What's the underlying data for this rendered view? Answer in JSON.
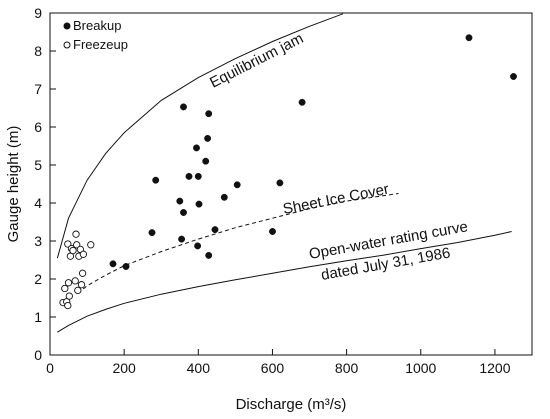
{
  "chart_data": {
    "type": "scatter",
    "xlabel": "Discharge (m³/s)",
    "ylabel": "Gauge height (m)",
    "xlim": [
      0,
      1300
    ],
    "ylim": [
      0,
      9
    ],
    "x_ticks": [
      0,
      200,
      400,
      600,
      800,
      1000,
      1200
    ],
    "y_ticks": [
      0,
      1,
      2,
      3,
      4,
      5,
      6,
      7,
      8,
      9
    ],
    "grid": false,
    "legend_position": "top-left",
    "series": [
      {
        "name": "Breakup",
        "marker": "filled-circle",
        "points": [
          {
            "x": 170,
            "y": 2.4
          },
          {
            "x": 205,
            "y": 2.33
          },
          {
            "x": 275,
            "y": 3.22
          },
          {
            "x": 285,
            "y": 4.6
          },
          {
            "x": 350,
            "y": 4.05
          },
          {
            "x": 355,
            "y": 3.05
          },
          {
            "x": 360,
            "y": 6.53
          },
          {
            "x": 360,
            "y": 3.75
          },
          {
            "x": 375,
            "y": 4.7
          },
          {
            "x": 395,
            "y": 5.45
          },
          {
            "x": 398,
            "y": 2.87
          },
          {
            "x": 400,
            "y": 4.7
          },
          {
            "x": 402,
            "y": 3.97
          },
          {
            "x": 420,
            "y": 5.1
          },
          {
            "x": 425,
            "y": 5.7
          },
          {
            "x": 428,
            "y": 6.35
          },
          {
            "x": 428,
            "y": 2.62
          },
          {
            "x": 445,
            "y": 3.3
          },
          {
            "x": 470,
            "y": 4.15
          },
          {
            "x": 505,
            "y": 4.48
          },
          {
            "x": 600,
            "y": 3.25
          },
          {
            "x": 620,
            "y": 4.53
          },
          {
            "x": 680,
            "y": 6.65
          },
          {
            "x": 1130,
            "y": 8.35
          },
          {
            "x": 1250,
            "y": 7.33
          }
        ]
      },
      {
        "name": "Freezeup",
        "marker": "open-circle",
        "points": [
          {
            "x": 35,
            "y": 1.38
          },
          {
            "x": 40,
            "y": 1.75
          },
          {
            "x": 45,
            "y": 1.4
          },
          {
            "x": 48,
            "y": 2.92
          },
          {
            "x": 48,
            "y": 1.3
          },
          {
            "x": 50,
            "y": 1.9
          },
          {
            "x": 52,
            "y": 1.55
          },
          {
            "x": 55,
            "y": 2.6
          },
          {
            "x": 58,
            "y": 2.8
          },
          {
            "x": 62,
            "y": 2.75
          },
          {
            "x": 68,
            "y": 1.95
          },
          {
            "x": 70,
            "y": 3.18
          },
          {
            "x": 72,
            "y": 2.9
          },
          {
            "x": 75,
            "y": 1.7
          },
          {
            "x": 78,
            "y": 2.6
          },
          {
            "x": 82,
            "y": 2.78
          },
          {
            "x": 85,
            "y": 1.85
          },
          {
            "x": 88,
            "y": 2.15
          },
          {
            "x": 90,
            "y": 2.65
          },
          {
            "x": 110,
            "y": 2.9
          }
        ]
      }
    ],
    "curves": [
      {
        "label": "Equilibrium jam",
        "style": "solid",
        "points": [
          [
            20,
            2.55
          ],
          [
            50,
            3.6
          ],
          [
            100,
            4.6
          ],
          [
            150,
            5.3
          ],
          [
            200,
            5.85
          ],
          [
            300,
            6.7
          ],
          [
            400,
            7.3
          ],
          [
            500,
            7.8
          ],
          [
            600,
            8.25
          ],
          [
            700,
            8.65
          ],
          [
            790,
            8.98
          ]
        ]
      },
      {
        "label": "Sheet Ice Cover",
        "style": "dashed",
        "points": [
          [
            75,
            1.62
          ],
          [
            100,
            1.82
          ],
          [
            150,
            2.1
          ],
          [
            200,
            2.35
          ],
          [
            300,
            2.72
          ],
          [
            400,
            3.05
          ],
          [
            500,
            3.35
          ],
          [
            600,
            3.6
          ],
          [
            700,
            3.85
          ],
          [
            800,
            4.05
          ],
          [
            940,
            4.25
          ]
        ]
      },
      {
        "label": "Open-water rating curve",
        "label_line2": "dated July 31, 1986",
        "style": "solid",
        "points": [
          [
            20,
            0.6
          ],
          [
            50,
            0.78
          ],
          [
            100,
            1.02
          ],
          [
            150,
            1.2
          ],
          [
            200,
            1.36
          ],
          [
            300,
            1.6
          ],
          [
            400,
            1.8
          ],
          [
            500,
            1.98
          ],
          [
            600,
            2.15
          ],
          [
            700,
            2.32
          ],
          [
            800,
            2.48
          ],
          [
            900,
            2.63
          ],
          [
            1000,
            2.8
          ],
          [
            1100,
            2.96
          ],
          [
            1200,
            3.15
          ],
          [
            1245,
            3.25
          ]
        ]
      }
    ]
  }
}
